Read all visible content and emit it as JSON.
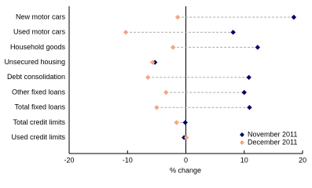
{
  "chart_data": {
    "type": "dot",
    "xlabel": "% change",
    "categories": [
      "New motor cars",
      "Used motor cars",
      "Household goods",
      "Unsecured housing",
      "Debt consolidation",
      "Other fixed loans",
      "Total fixed loans",
      "Total credit limits",
      "Used credit limits"
    ],
    "series": [
      {
        "name": "November 2011",
        "color": "#000066",
        "values": [
          18.5,
          8.1,
          12.3,
          -5.3,
          10.8,
          10.0,
          10.9,
          -0.1,
          -0.3
        ]
      },
      {
        "name": "December 2011",
        "color": "#f4a582",
        "values": [
          -1.4,
          -10.3,
          -2.2,
          -5.7,
          -6.5,
          -3.4,
          -5.0,
          -1.6,
          0.1
        ]
      }
    ],
    "xlim": [
      -20,
      20
    ],
    "xticks": [
      -20,
      -10,
      0,
      10,
      20
    ],
    "legend": "lower right"
  }
}
